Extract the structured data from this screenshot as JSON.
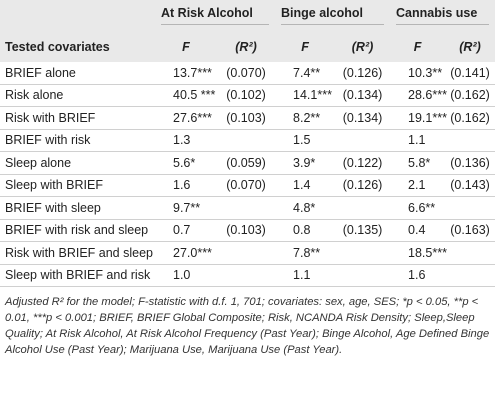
{
  "table": {
    "groups": [
      "At Risk Alcohol",
      "Binge alcohol",
      "Cannabis use"
    ],
    "columns": [
      "Tested covariates",
      "F",
      "(R²)",
      "F",
      "(R²)",
      "F",
      "(R²)"
    ],
    "rows": [
      [
        "BRIEF alone",
        "13.7***",
        "(0.070)",
        "7.4**",
        "(0.126)",
        "10.3**",
        "(0.141)"
      ],
      [
        "Risk alone",
        "40.5 ***",
        "(0.102)",
        "14.1***",
        "(0.134)",
        "28.6***",
        "(0.162)"
      ],
      [
        "Risk with BRIEF",
        "27.6***",
        "(0.103)",
        "8.2**",
        "(0.134)",
        "19.1***",
        "(0.162)"
      ],
      [
        "BRIEF with risk",
        "1.3",
        null,
        "1.5",
        null,
        "1.1",
        null
      ],
      [
        "Sleep alone",
        "5.6*",
        "(0.059)",
        "3.9*",
        "(0.122)",
        "5.8*",
        "(0.136)"
      ],
      [
        "Sleep with BRIEF",
        "1.6",
        "(0.070)",
        "1.4",
        "(0.126)",
        "2.1",
        "(0.143)"
      ],
      [
        "BRIEF with sleep",
        "9.7**",
        null,
        "4.8*",
        null,
        "6.6**",
        null
      ],
      [
        "BRIEF with risk and sleep",
        "0.7",
        "(0.103)",
        "0.8",
        "(0.135)",
        "0.4",
        "(0.163)"
      ],
      [
        "Risk with BRIEF and sleep",
        "27.0***",
        null,
        "7.8**",
        null,
        "18.5***",
        null
      ],
      [
        "Sleep with BRIEF and risk",
        "1.0",
        null,
        "1.1",
        null,
        "1.6",
        null
      ]
    ],
    "footnote": "Adjusted R² for the model; F-statistic with d.f. 1, 701; covariates: sex, age, SES; *p < 0.05, **p < 0.01, ***p < 0.001; BRIEF, BRIEF Global Composite; Risk, NCANDA Risk Density; Sleep,Sleep Quality; At Risk Alcohol, At Risk Alcohol Frequency (Past Year); Binge Alcohol, Age Defined Binge Alcohol Use (Past Year); Marijuana Use, Marijuana Use (Past Year)."
  }
}
